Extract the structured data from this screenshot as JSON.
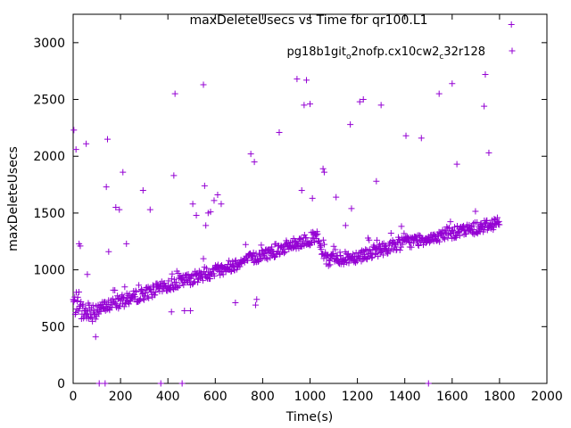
{
  "chart_data": {
    "type": "scatter",
    "title": "maxDeleteUsecs vs Time for qr100.L1",
    "xlabel": "Time(s)",
    "ylabel": "maxDeleteUsecs",
    "xlim": [
      0,
      2000
    ],
    "ylim": [
      0,
      3250
    ],
    "xticks": [
      "0",
      "200",
      "400",
      "600",
      "800",
      "1000",
      "1200",
      "1400",
      "1600",
      "1800",
      "2000"
    ],
    "yticks": [
      "0",
      "500",
      "1000",
      "1500",
      "2000",
      "2500",
      "3000"
    ],
    "grid": false,
    "legend_position": "top-right",
    "marker_color": "#9400d3",
    "series": [
      {
        "name_parts": [
          "pg18b1git",
          "o",
          "2nofp.cx10cw2",
          "c",
          "32r128"
        ],
        "trend": [
          [
            0,
            720
          ],
          [
            20,
            640
          ],
          [
            60,
            620
          ],
          [
            100,
            650
          ],
          [
            200,
            720
          ],
          [
            400,
            860
          ],
          [
            600,
            990
          ],
          [
            800,
            1130
          ],
          [
            950,
            1240
          ],
          [
            1030,
            1290
          ],
          [
            1045,
            1180
          ],
          [
            1070,
            1080
          ],
          [
            1100,
            1090
          ],
          [
            1200,
            1120
          ],
          [
            1400,
            1240
          ],
          [
            1600,
            1320
          ],
          [
            1800,
            1420
          ]
        ],
        "outliers": [
          [
            3,
            2230
          ],
          [
            12,
            2060
          ],
          [
            25,
            1230
          ],
          [
            30,
            1210
          ],
          [
            60,
            960
          ],
          [
            55,
            2110
          ],
          [
            95,
            410
          ],
          [
            110,
            0
          ],
          [
            135,
            0
          ],
          [
            145,
            2150
          ],
          [
            140,
            1730
          ],
          [
            150,
            1160
          ],
          [
            180,
            1550
          ],
          [
            195,
            1530
          ],
          [
            210,
            1860
          ],
          [
            225,
            1230
          ],
          [
            295,
            1700
          ],
          [
            325,
            1530
          ],
          [
            370,
            0
          ],
          [
            415,
            630
          ],
          [
            425,
            1830
          ],
          [
            430,
            2550
          ],
          [
            460,
            0
          ],
          [
            470,
            640
          ],
          [
            495,
            640
          ],
          [
            505,
            1580
          ],
          [
            520,
            1480
          ],
          [
            550,
            2630
          ],
          [
            555,
            1740
          ],
          [
            560,
            1390
          ],
          [
            570,
            1500
          ],
          [
            580,
            1510
          ],
          [
            595,
            1610
          ],
          [
            610,
            1660
          ],
          [
            625,
            1580
          ],
          [
            685,
            710
          ],
          [
            750,
            2020
          ],
          [
            765,
            1950
          ],
          [
            770,
            690
          ],
          [
            775,
            740
          ],
          [
            870,
            2210
          ],
          [
            945,
            2680
          ],
          [
            965,
            1700
          ],
          [
            975,
            2450
          ],
          [
            985,
            2670
          ],
          [
            1000,
            2460
          ],
          [
            1010,
            1630
          ],
          [
            1055,
            1890
          ],
          [
            1060,
            1860
          ],
          [
            1110,
            1640
          ],
          [
            1150,
            1390
          ],
          [
            1170,
            2280
          ],
          [
            1175,
            1540
          ],
          [
            1210,
            2480
          ],
          [
            1225,
            2500
          ],
          [
            1245,
            1280
          ],
          [
            1280,
            1780
          ],
          [
            1300,
            2450
          ],
          [
            1405,
            2180
          ],
          [
            1470,
            2160
          ],
          [
            1500,
            0
          ],
          [
            1545,
            2550
          ],
          [
            1600,
            2640
          ],
          [
            1620,
            1930
          ],
          [
            1720,
            1390
          ],
          [
            1735,
            2440
          ],
          [
            1740,
            2720
          ],
          [
            1755,
            2030
          ],
          [
            1850,
            3160
          ]
        ]
      }
    ]
  }
}
